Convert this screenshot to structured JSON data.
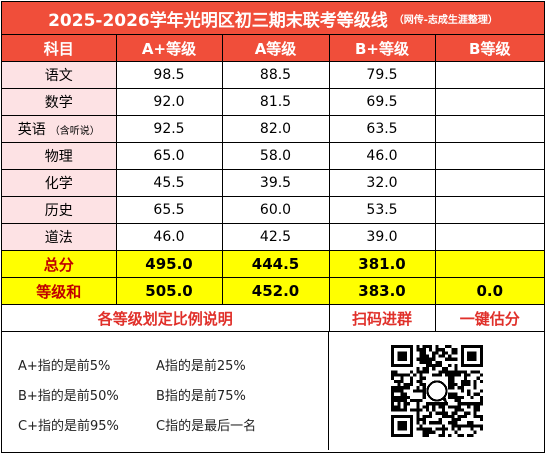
{
  "title": {
    "main": "2025-2026学年光明区初三期末联考等级线",
    "note": "（网传-志成生涯整理）"
  },
  "headers": [
    "科目",
    "A+等级",
    "A等级",
    "B+等级",
    "B等级"
  ],
  "subjects": [
    {
      "name": "语文",
      "note": "",
      "aplus": "98.5",
      "a": "88.5",
      "bplus": "79.5",
      "b": ""
    },
    {
      "name": "数学",
      "note": "",
      "aplus": "92.0",
      "a": "81.5",
      "bplus": "69.5",
      "b": ""
    },
    {
      "name": "英语",
      "note": "（含听说）",
      "aplus": "92.5",
      "a": "82.0",
      "bplus": "63.5",
      "b": ""
    },
    {
      "name": "物理",
      "note": "",
      "aplus": "65.0",
      "a": "58.0",
      "bplus": "46.0",
      "b": ""
    },
    {
      "name": "化学",
      "note": "",
      "aplus": "45.5",
      "a": "39.5",
      "bplus": "32.0",
      "b": ""
    },
    {
      "name": "历史",
      "note": "",
      "aplus": "65.5",
      "a": "60.0",
      "bplus": "53.5",
      "b": ""
    },
    {
      "name": "道法",
      "note": "",
      "aplus": "46.0",
      "a": "42.5",
      "bplus": "39.0",
      "b": ""
    }
  ],
  "total": {
    "label": "总分",
    "aplus": "495.0",
    "a": "444.5",
    "bplus": "381.0",
    "b": ""
  },
  "grade_sum": {
    "label": "等级和",
    "aplus": "505.0",
    "a": "452.0",
    "bplus": "383.0",
    "b": "0.0"
  },
  "links": {
    "explain": "各等级划定比例说明",
    "scan": "扫码进群",
    "estimate": "一键估分"
  },
  "explanations": [
    [
      "A+指的是前5%",
      "A指的是前25%"
    ],
    [
      "B+指的是前50%",
      "B指的是前75%"
    ],
    [
      "C+指的是前95%",
      "C指的是最后一名"
    ]
  ],
  "icons": {
    "qr": "qr-code-icon"
  },
  "colors": {
    "header": "#f04e3a",
    "subject_bg": "#fde2e4",
    "highlight": "#ffff00",
    "link": "#e0302a"
  }
}
